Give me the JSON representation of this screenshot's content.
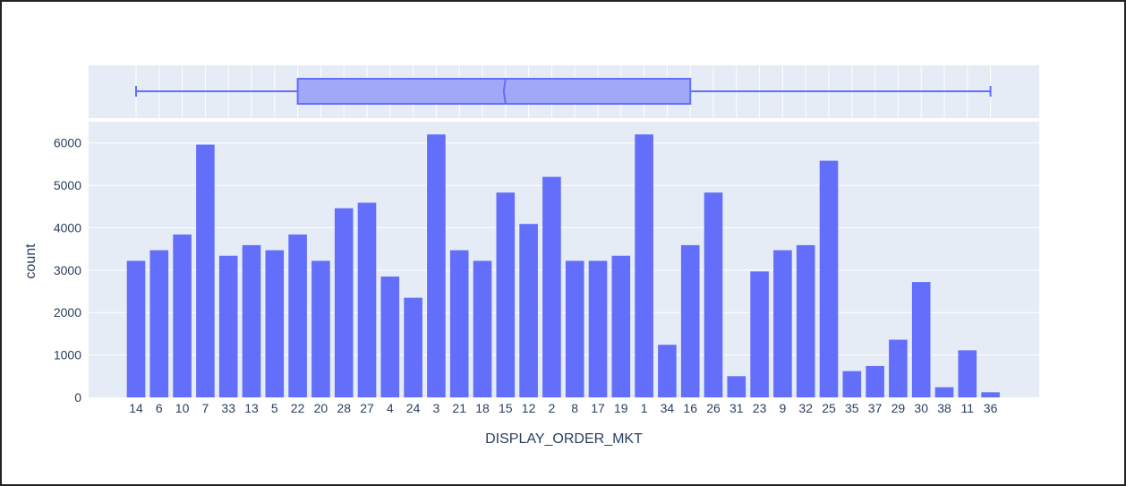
{
  "colors": {
    "bar": "#636efa",
    "box_fill": "#a1a8f7",
    "plot_bg": "#e5ecf6",
    "grid": "#ffffff",
    "text": "#2a3f5f"
  },
  "chart_data": {
    "type": "bar",
    "title": "",
    "xlabel": "DISPLAY_ORDER_MKT",
    "ylabel": "count",
    "ylim": [
      0,
      6500
    ],
    "yticks": [
      0,
      1000,
      2000,
      3000,
      4000,
      5000,
      6000
    ],
    "ytick_labels": [
      "0",
      "1000",
      "2000",
      "3000",
      "4000",
      "5000",
      "6000"
    ],
    "grid": true,
    "categories": [
      "14",
      "6",
      "10",
      "7",
      "33",
      "13",
      "5",
      "22",
      "20",
      "28",
      "27",
      "4",
      "24",
      "3",
      "21",
      "18",
      "15",
      "12",
      "2",
      "8",
      "17",
      "19",
      "1",
      "34",
      "16",
      "26",
      "31",
      "23",
      "9",
      "32",
      "25",
      "35",
      "37",
      "29",
      "30",
      "38",
      "11",
      "36"
    ],
    "values": [
      3220,
      3470,
      3840,
      5960,
      3340,
      3590,
      3470,
      3840,
      3220,
      4460,
      4590,
      2850,
      2350,
      6200,
      3470,
      3220,
      4830,
      4090,
      5200,
      3220,
      3220,
      3340,
      6200,
      1240,
      3590,
      4830,
      500,
      2970,
      3470,
      3590,
      5580,
      620,
      740,
      1360,
      2720,
      240,
      1110,
      120
    ],
    "marginal_box": {
      "orientation": "horizontal",
      "axis": "x",
      "min": "14",
      "q1": "22",
      "median": "15",
      "q3": "16",
      "max": "36"
    }
  }
}
